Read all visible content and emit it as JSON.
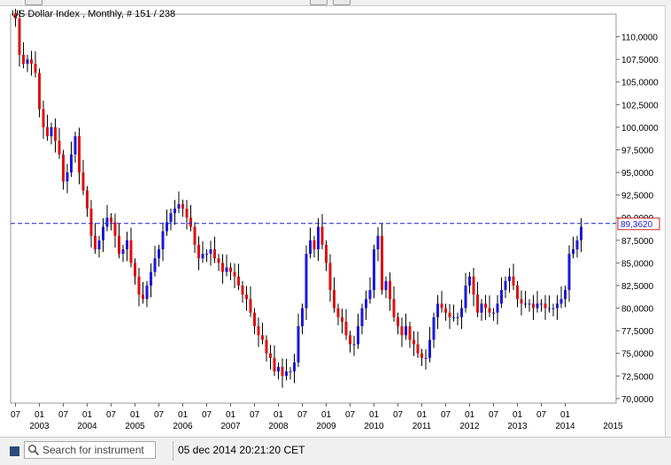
{
  "chart_header": "US Dollar Index  , Monthly, # 151 / 238",
  "search": {
    "placeholder": "Search for instrument"
  },
  "status": {
    "timestamp": "05 dec 2014 20:21:20 CET"
  },
  "colors": {
    "up": "#1a1adc",
    "down": "#e01010",
    "wick": "#000000",
    "last_line": "#1a1adc",
    "last_box": "#d02020",
    "grid": "#c8c8c8"
  },
  "chart_data": {
    "type": "candlestick",
    "title": "US Dollar Index",
    "timeframe": "Monthly",
    "ylim": [
      69.5,
      112.5
    ],
    "y_ticks": [
      "110,0000",
      "107,5000",
      "105,0000",
      "102,5000",
      "100,0000",
      "97,5000",
      "95,0000",
      "92,5000",
      "90,0000",
      "87,5000",
      "85,0000",
      "82,5000",
      "80,0000",
      "77,5000",
      "75,0000",
      "72,5000",
      "70,0000"
    ],
    "y_tick_values": [
      110,
      107.5,
      105,
      102.5,
      100,
      97.5,
      95,
      92.5,
      90,
      87.5,
      85,
      82.5,
      80,
      77.5,
      75,
      72.5,
      70
    ],
    "x_tick_labels": [
      "07",
      "01",
      "07",
      "01",
      "07",
      "01",
      "07",
      "01",
      "07",
      "01",
      "07",
      "01",
      "07",
      "01",
      "07",
      "01",
      "07",
      "01",
      "07",
      "01",
      "07",
      "01",
      "07",
      "01"
    ],
    "x_tick_index": [
      0,
      6,
      12,
      18,
      24,
      30,
      36,
      42,
      48,
      54,
      60,
      66,
      72,
      78,
      84,
      90,
      96,
      102,
      108,
      114,
      120,
      126,
      132,
      138
    ],
    "year_labels": [
      "2003",
      "2004",
      "2005",
      "2006",
      "2007",
      "2008",
      "2009",
      "2010",
      "2011",
      "2012",
      "2013",
      "2014",
      "2015"
    ],
    "year_index": [
      6,
      18,
      30,
      42,
      54,
      66,
      78,
      90,
      102,
      114,
      126,
      138,
      150
    ],
    "last_price": "89,3620",
    "last_value": 89.362,
    "start": "2002-07",
    "closes": [
      112.0,
      108.0,
      107.0,
      107.5,
      107.0,
      106.0,
      102.0,
      100.0,
      99.0,
      100.0,
      98.5,
      97.0,
      94.0,
      95.0,
      97.0,
      99.0,
      95.0,
      93.0,
      91.0,
      88.0,
      86.5,
      87.5,
      89.0,
      90.0,
      89.5,
      88.0,
      86.0,
      86.5,
      87.5,
      85.0,
      83.5,
      81.5,
      81.0,
      82.5,
      84.0,
      85.5,
      86.5,
      88.5,
      89.5,
      90.5,
      91.0,
      91.5,
      91.0,
      90.0,
      89.0,
      87.0,
      85.5,
      86.0,
      86.0,
      86.5,
      85.5,
      85.0,
      84.0,
      84.5,
      84.0,
      83.5,
      82.5,
      81.5,
      81.0,
      79.5,
      78.0,
      77.0,
      76.5,
      75.0,
      74.5,
      73.0,
      73.5,
      72.5,
      73.0,
      73.0,
      74.0,
      78.0,
      80.0,
      86.0,
      87.5,
      86.5,
      89.0,
      87.0,
      85.0,
      82.0,
      80.0,
      79.0,
      78.5,
      77.0,
      76.0,
      76.0,
      78.0,
      80.0,
      81.0,
      82.0,
      86.5,
      88.0,
      82.0,
      83.0,
      81.0,
      79.0,
      78.0,
      77.0,
      78.0,
      76.5,
      76.0,
      75.0,
      74.5,
      74.5,
      76.5,
      79.0,
      80.5,
      80.0,
      79.5,
      79.0,
      79.0,
      79.0,
      80.0,
      82.5,
      83.5,
      81.5,
      79.5,
      80.5,
      80.0,
      79.5,
      79.5,
      80.5,
      82.0,
      83.0,
      83.5,
      82.5,
      81.0,
      80.5,
      80.5,
      80.5,
      80.0,
      80.5,
      80.5,
      80.0,
      80.0,
      80.0,
      80.5,
      81.0,
      82.0,
      86.0,
      86.5,
      87.5,
      89.0
    ],
    "series": [
      {
        "name": "US Dollar Index",
        "values": "closes"
      }
    ]
  }
}
